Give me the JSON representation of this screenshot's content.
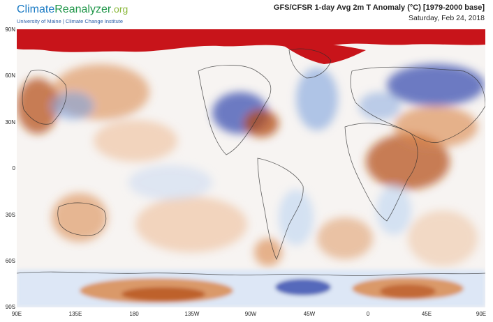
{
  "brand": {
    "name_part1": "Climate",
    "name_part2": "Reanalyzer",
    "name_part3": ".org",
    "subtitle": "University of Maine | Climate Change Institute"
  },
  "map": {
    "title": "GFS/CFSR 1-day Avg 2m T Anomaly (°C) [1979-2000 base]",
    "date": "Saturday, Feb 24, 2018",
    "lat_labels": [
      "90N",
      "60N",
      "30N",
      "0",
      "30S",
      "60S",
      "90S"
    ],
    "lon_labels": [
      "90E",
      "135E",
      "180",
      "135W",
      "90W",
      "45W",
      "0",
      "45E",
      "90E"
    ],
    "colors": {
      "warm_extreme": "#c8141a",
      "warm_strong": "#b24a15",
      "warm_moderate": "#d98444",
      "warm_light": "#efc6a6",
      "neutral": "#f7f4f2",
      "cool_light": "#c5d8f2",
      "cool_moderate": "#7fa3dd",
      "cool_strong": "#3f52b2"
    }
  }
}
